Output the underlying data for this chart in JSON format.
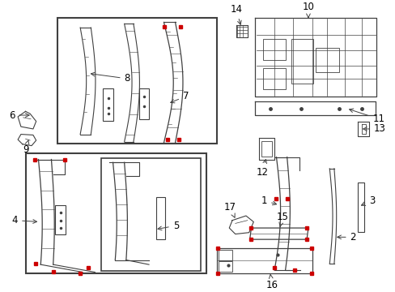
{
  "bg_color": "#ffffff",
  "line_color": "#404040",
  "red_color": "#cc0000",
  "label_color": "#000000",
  "figsize": [
    4.89,
    3.6
  ],
  "dpi": 100
}
